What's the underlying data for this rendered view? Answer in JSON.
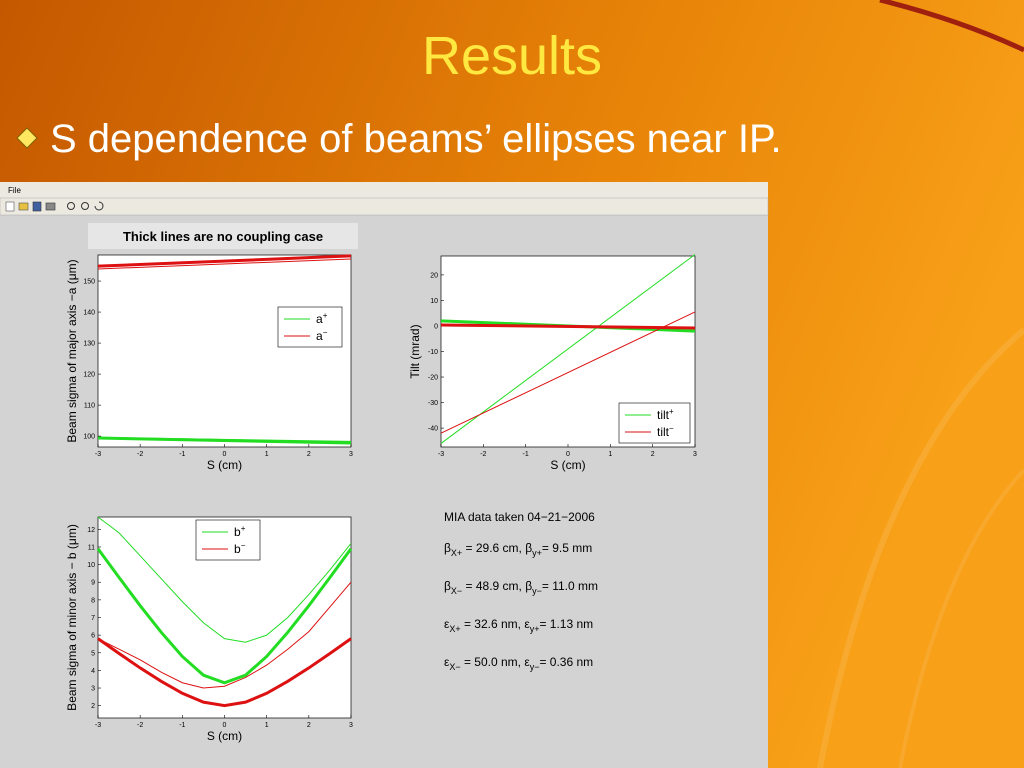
{
  "slide": {
    "title": "Results",
    "bullet": "S dependence of beams’ ellipses near IP."
  },
  "window": {
    "menu": "File",
    "note": "Thick lines are no coupling case"
  },
  "chart_data": [
    {
      "type": "line",
      "ylabel": "Beam sigma of major axis −a (μm)",
      "xlabel": "S (cm)",
      "x": [
        -3,
        3
      ],
      "xlim": [
        -3,
        3
      ],
      "xticks": [
        -3,
        -2,
        -1,
        0,
        1,
        2,
        3
      ],
      "ylim": [
        96.5,
        158.4
      ],
      "yticks": [
        100,
        110,
        120,
        130,
        140,
        150
      ],
      "series": [
        {
          "color": "#22dd22",
          "line_width": 1,
          "values": [
            99.6,
            98.3
          ]
        },
        {
          "color": "#22dd22",
          "line_width": 3,
          "values": [
            99.4,
            97.8
          ]
        },
        {
          "color": "#dd1111",
          "line_width": 1,
          "values": [
            153.9,
            157.1
          ]
        },
        {
          "color": "#dd1111",
          "line_width": 3,
          "values": [
            154.8,
            158.1
          ]
        }
      ],
      "legend": [
        {
          "label": "a",
          "sup": "+",
          "color": "#22dd22"
        },
        {
          "label": "a",
          "sup": "−",
          "color": "#dd1111"
        }
      ]
    },
    {
      "type": "line",
      "ylabel": "Tilt (mrad)",
      "xlabel": "S (cm)",
      "x": [
        -3,
        3
      ],
      "xlim": [
        -3,
        3
      ],
      "xticks": [
        -3,
        -2,
        -1,
        0,
        1,
        2,
        3
      ],
      "ylim": [
        -47.4,
        27.4
      ],
      "yticks": [
        -40,
        -30,
        -20,
        -10,
        0,
        10,
        20
      ],
      "series": [
        {
          "color": "#22dd22",
          "line_width": 1,
          "values": [
            -46,
            28
          ]
        },
        {
          "color": "#22dd22",
          "line_width": 3,
          "values": [
            2,
            -2
          ]
        },
        {
          "color": "#dd1111",
          "line_width": 1,
          "values": [
            -42,
            5.5
          ]
        },
        {
          "color": "#dd1111",
          "line_width": 3,
          "values": [
            0.4,
            -0.8
          ]
        }
      ],
      "legend": [
        {
          "label": "tilt",
          "sup": "+",
          "color": "#22dd22"
        },
        {
          "label": "tilt",
          "sup": "−",
          "color": "#dd1111"
        }
      ]
    },
    {
      "type": "line",
      "ylabel": "Beam sigma of minor axis − b (μm)",
      "xlabel": "S (cm)",
      "x": [
        -3,
        -2.5,
        -2,
        -1.5,
        -1,
        -0.5,
        0,
        0.5,
        1,
        1.5,
        2,
        2.5,
        3
      ],
      "xlim": [
        -3,
        3
      ],
      "xticks": [
        -3,
        -2,
        -1,
        0,
        1,
        2,
        3
      ],
      "ylim": [
        1.3,
        12.7
      ],
      "yticks": [
        2,
        3,
        4,
        5,
        6,
        7,
        8,
        9,
        10,
        11,
        12
      ],
      "series": [
        {
          "color": "#22dd22",
          "line_width": 1,
          "values": [
            12.7,
            11.8,
            10.5,
            9.2,
            7.9,
            6.7,
            5.8,
            5.6,
            6.0,
            7.0,
            8.3,
            9.7,
            11.2
          ]
        },
        {
          "color": "#22dd22",
          "line_width": 3,
          "values": [
            10.9,
            9.27,
            7.67,
            6.16,
            4.79,
            3.73,
            3.3,
            3.73,
            4.79,
            6.16,
            7.67,
            9.27,
            10.9
          ]
        },
        {
          "color": "#dd1111",
          "line_width": 1,
          "values": [
            5.8,
            5.2,
            4.6,
            3.9,
            3.3,
            3.0,
            3.1,
            3.6,
            4.3,
            5.2,
            6.2,
            7.6,
            9.0
          ]
        },
        {
          "color": "#dd1111",
          "line_width": 3,
          "values": [
            5.8,
            4.96,
            4.14,
            3.38,
            2.7,
            2.2,
            2.0,
            2.2,
            2.7,
            3.38,
            4.14,
            4.96,
            5.8
          ]
        }
      ],
      "legend": [
        {
          "label": "b",
          "sup": "+",
          "color": "#22dd22"
        },
        {
          "label": "b",
          "sup": "−",
          "color": "#dd1111"
        }
      ]
    }
  ],
  "info": {
    "heading": "MIA data taken 04−21−2006",
    "lines": [
      [
        {
          "text": "β"
        },
        {
          "text": "X+",
          "style": "sub"
        },
        {
          "text": " = 29.6 cm, β"
        },
        {
          "text": "y+",
          "style": "sub"
        },
        {
          "text": "= 9.5 mm"
        }
      ],
      [
        {
          "text": "β"
        },
        {
          "text": "X−",
          "style": "sub"
        },
        {
          "text": " = 48.9 cm, β"
        },
        {
          "text": "y−",
          "style": "sub"
        },
        {
          "text": "= 11.0 mm"
        }
      ],
      [
        {
          "text": "ε"
        },
        {
          "text": "X+",
          "style": "sub"
        },
        {
          "text": " = 32.6 nm, ε"
        },
        {
          "text": "y+",
          "style": "sub"
        },
        {
          "text": "= 1.13 nm"
        }
      ],
      [
        {
          "text": "ε"
        },
        {
          "text": "X−",
          "style": "sub"
        },
        {
          "text": " = 50.0 nm, ε"
        },
        {
          "text": "y−",
          "style": "sub"
        },
        {
          "text": "= 0.36 nm"
        }
      ]
    ]
  }
}
